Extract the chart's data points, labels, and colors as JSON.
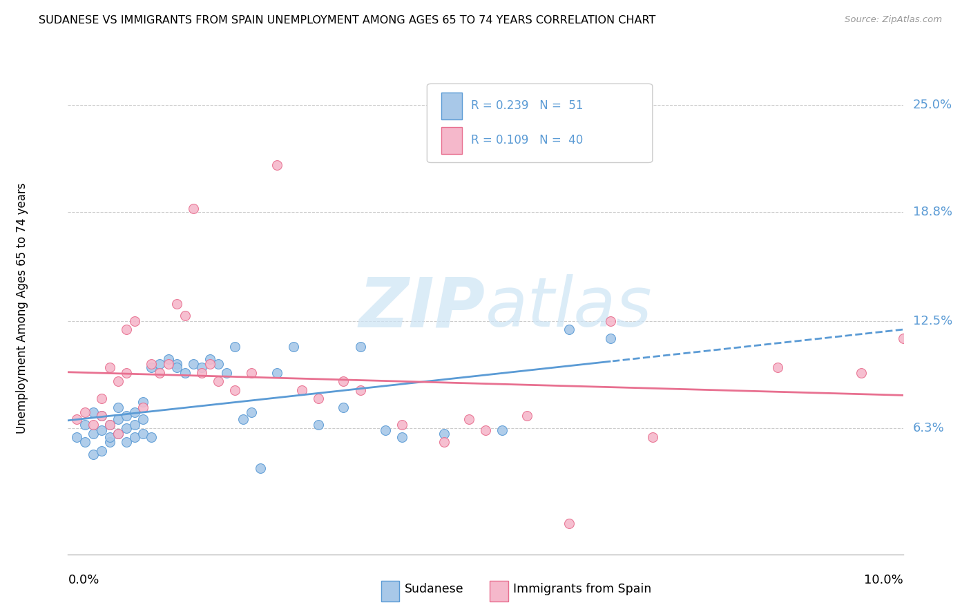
{
  "title": "SUDANESE VS IMMIGRANTS FROM SPAIN UNEMPLOYMENT AMONG AGES 65 TO 74 YEARS CORRELATION CHART",
  "source": "Source: ZipAtlas.com",
  "ylabel": "Unemployment Among Ages 65 to 74 years",
  "ytick_labels": [
    "6.3%",
    "12.5%",
    "18.8%",
    "25.0%"
  ],
  "ytick_values": [
    0.063,
    0.125,
    0.188,
    0.25
  ],
  "xlim": [
    0.0,
    0.1
  ],
  "ylim": [
    -0.01,
    0.275
  ],
  "legend_r1": "R = 0.239",
  "legend_n1": "N =  51",
  "legend_r2": "R = 0.109",
  "legend_n2": "N =  40",
  "sudanese_color": "#a8c8e8",
  "spain_color": "#f5b8cb",
  "line_blue_color": "#5b9bd5",
  "line_pink_color": "#e87090",
  "watermark_color": "#cde4f5",
  "sudanese_x": [
    0.001,
    0.002,
    0.002,
    0.003,
    0.003,
    0.003,
    0.004,
    0.004,
    0.004,
    0.005,
    0.005,
    0.005,
    0.006,
    0.006,
    0.006,
    0.007,
    0.007,
    0.007,
    0.008,
    0.008,
    0.008,
    0.009,
    0.009,
    0.009,
    0.01,
    0.01,
    0.011,
    0.012,
    0.013,
    0.013,
    0.014,
    0.015,
    0.016,
    0.017,
    0.018,
    0.019,
    0.02,
    0.021,
    0.022,
    0.023,
    0.025,
    0.027,
    0.03,
    0.033,
    0.035,
    0.038,
    0.04,
    0.045,
    0.052,
    0.06,
    0.065
  ],
  "sudanese_y": [
    0.058,
    0.055,
    0.065,
    0.048,
    0.06,
    0.072,
    0.05,
    0.062,
    0.07,
    0.055,
    0.065,
    0.058,
    0.06,
    0.068,
    0.075,
    0.055,
    0.063,
    0.07,
    0.058,
    0.065,
    0.072,
    0.06,
    0.068,
    0.078,
    0.058,
    0.098,
    0.1,
    0.103,
    0.1,
    0.098,
    0.095,
    0.1,
    0.098,
    0.103,
    0.1,
    0.095,
    0.11,
    0.068,
    0.072,
    0.04,
    0.095,
    0.11,
    0.065,
    0.075,
    0.11,
    0.062,
    0.058,
    0.06,
    0.062,
    0.12,
    0.115
  ],
  "spain_x": [
    0.001,
    0.002,
    0.003,
    0.004,
    0.004,
    0.005,
    0.005,
    0.006,
    0.006,
    0.007,
    0.007,
    0.008,
    0.009,
    0.01,
    0.011,
    0.012,
    0.013,
    0.014,
    0.015,
    0.016,
    0.017,
    0.018,
    0.02,
    0.022,
    0.025,
    0.028,
    0.03,
    0.033,
    0.035,
    0.04,
    0.045,
    0.048,
    0.05,
    0.055,
    0.06,
    0.065,
    0.07,
    0.085,
    0.095,
    0.1
  ],
  "spain_y": [
    0.068,
    0.072,
    0.065,
    0.07,
    0.08,
    0.065,
    0.098,
    0.06,
    0.09,
    0.095,
    0.12,
    0.125,
    0.075,
    0.1,
    0.095,
    0.1,
    0.135,
    0.128,
    0.19,
    0.095,
    0.1,
    0.09,
    0.085,
    0.095,
    0.215,
    0.085,
    0.08,
    0.09,
    0.085,
    0.065,
    0.055,
    0.068,
    0.062,
    0.07,
    0.008,
    0.125,
    0.058,
    0.098,
    0.095,
    0.115
  ]
}
